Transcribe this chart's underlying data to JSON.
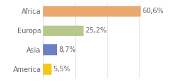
{
  "categories": [
    "America",
    "Asia",
    "Europa",
    "Africa"
  ],
  "values": [
    5.5,
    8.7,
    25.2,
    60.6
  ],
  "labels": [
    "5,5%",
    "8,7%",
    "25,2%",
    "60,6%"
  ],
  "bar_colors": [
    "#f5c518",
    "#6b7fc4",
    "#b5c98e",
    "#e8a96e"
  ],
  "background_color": "#ffffff",
  "xlim": [
    0,
    80
  ],
  "label_fontsize": 7,
  "tick_fontsize": 7,
  "bar_height": 0.55
}
